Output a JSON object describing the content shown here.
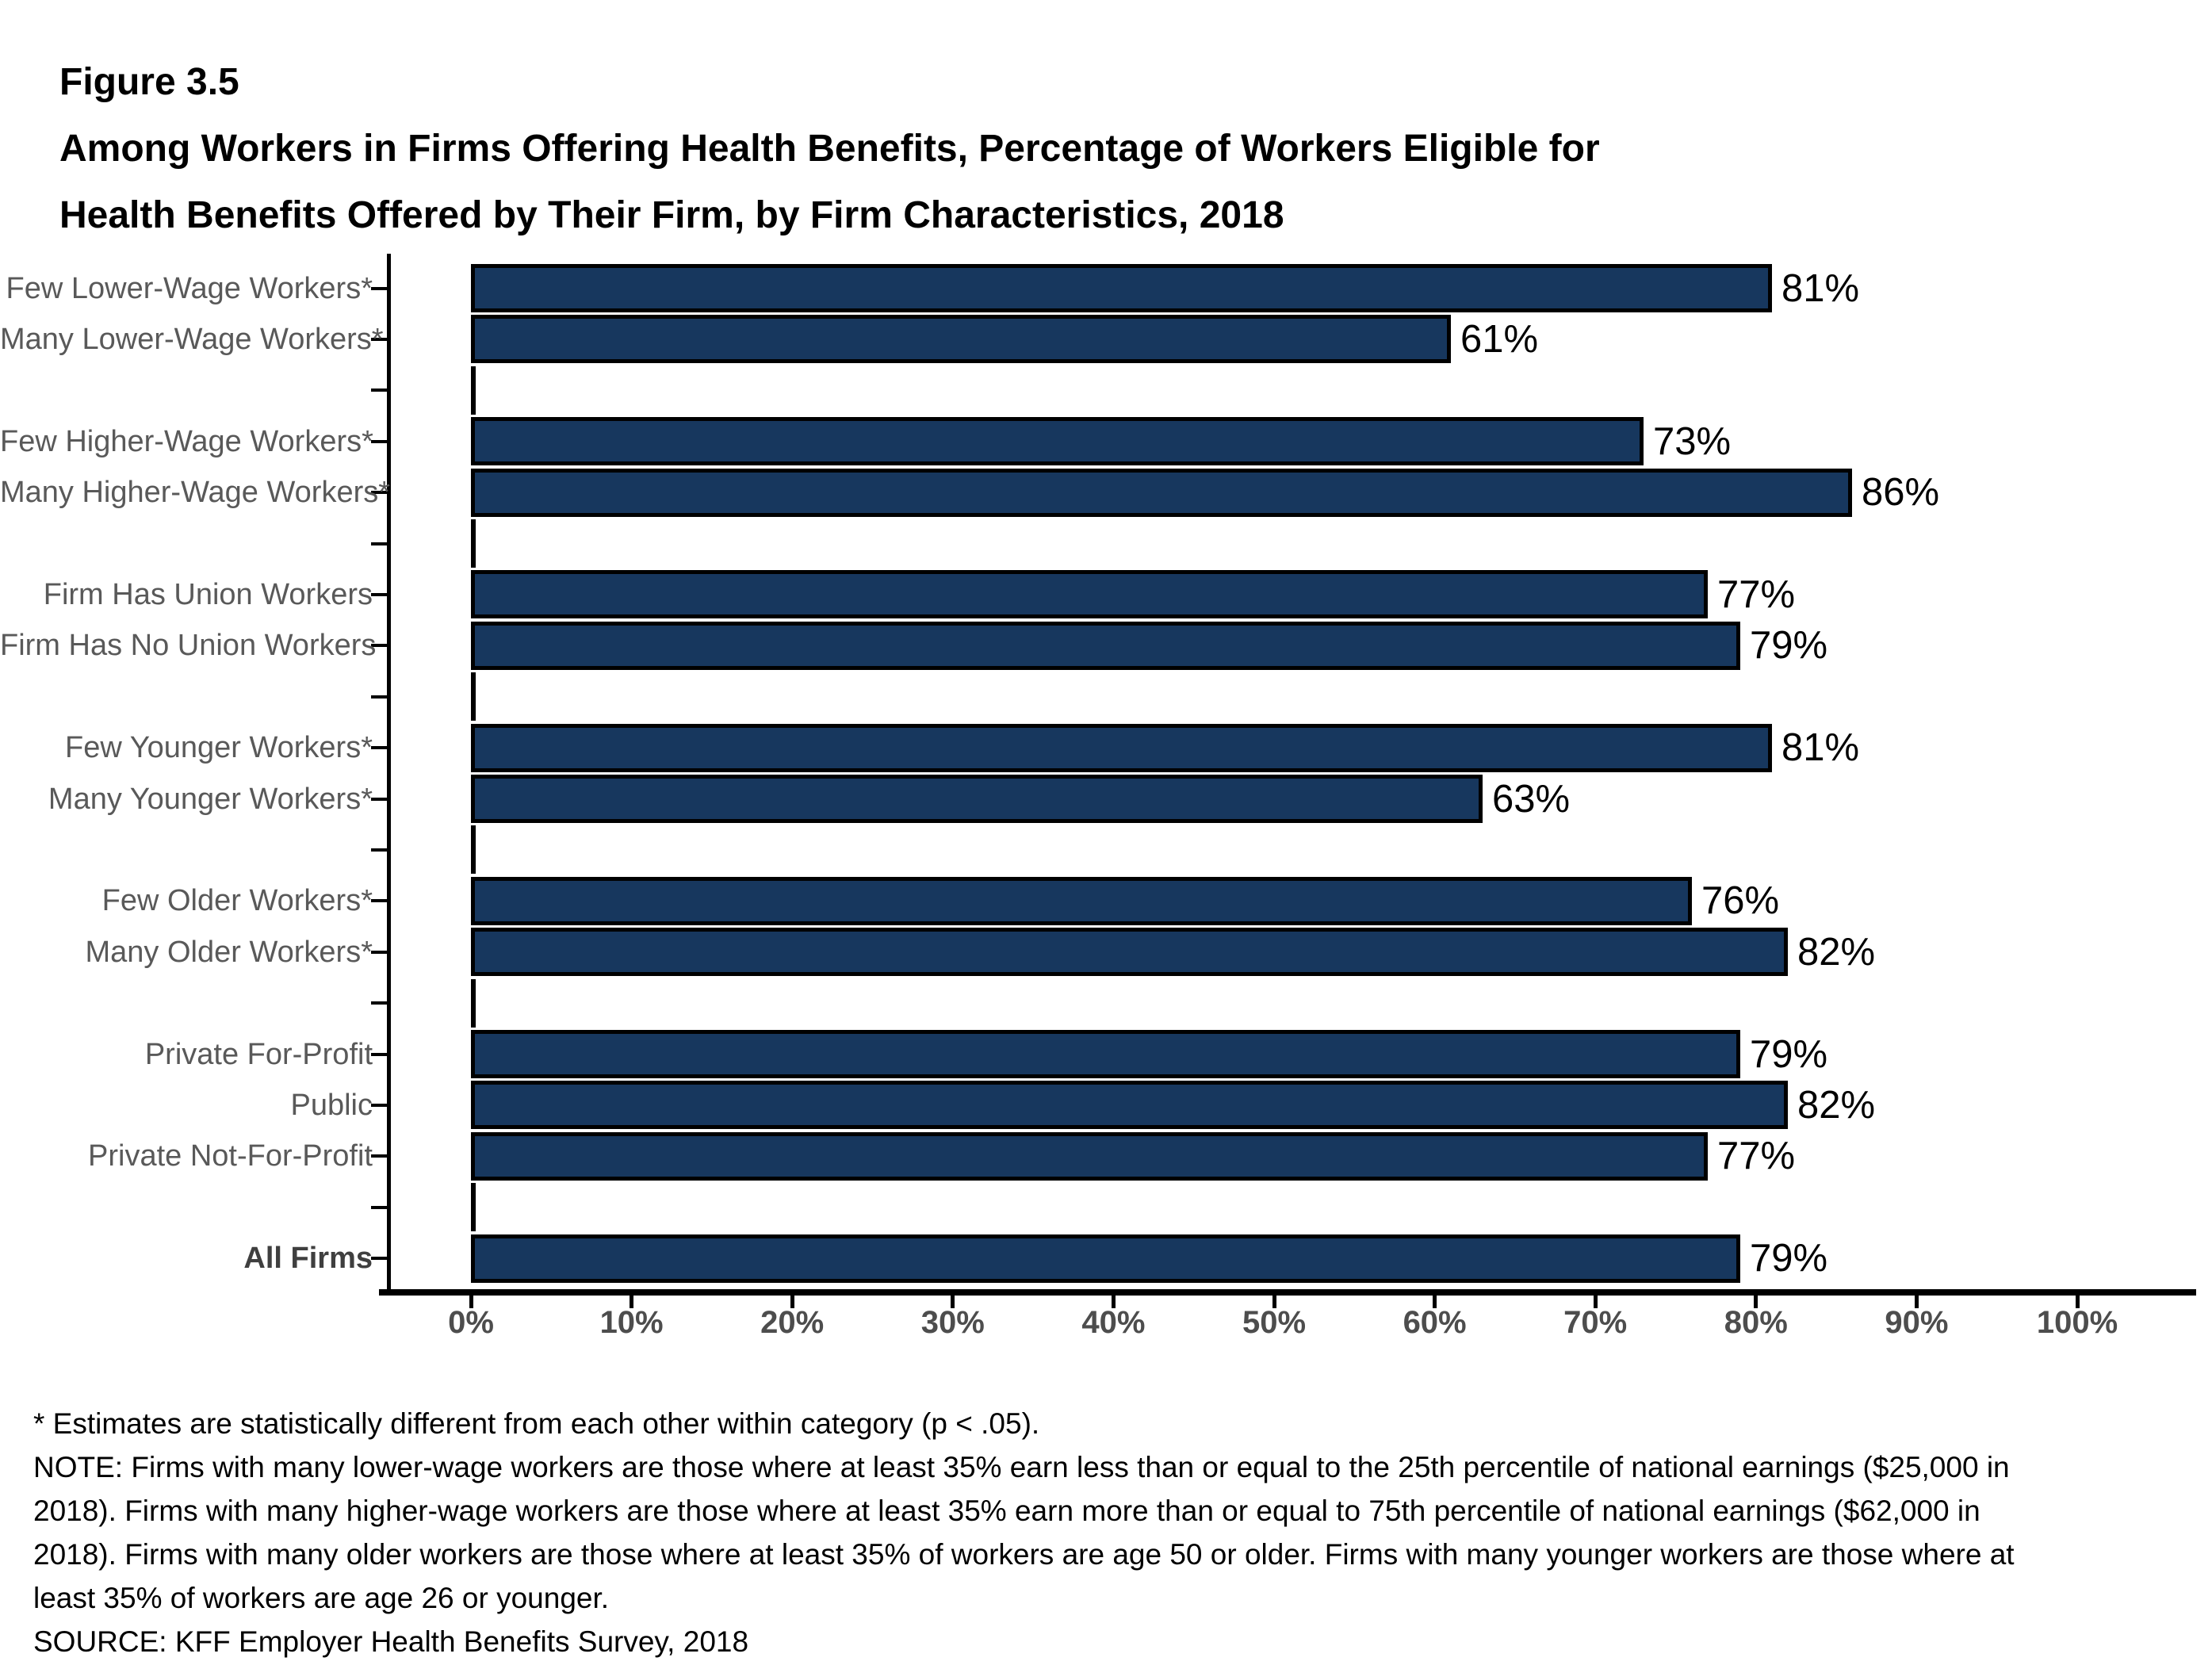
{
  "header": {
    "figure_label": "Figure 3.5",
    "title_line1": "Among Workers in Firms Offering Health Benefits, Percentage of Workers Eligible for",
    "title_line2": "Health Benefits Offered by Their Firm, by Firm Characteristics, 2018"
  },
  "chart_data": {
    "type": "bar",
    "orientation": "horizontal",
    "title": "Among Workers in Firms Offering Health Benefits, Percentage of Workers Eligible for Health Benefits Offered by Their Firm, by Firm Characteristics, 2018",
    "categories": [
      "Few Lower-Wage Workers*",
      "Many Lower-Wage Workers*",
      "Few Higher-Wage Workers*",
      "Many Higher-Wage Workers*",
      "Firm Has Union Workers",
      "Firm Has No Union Workers",
      "Few Younger Workers*",
      "Many Younger Workers*",
      "Few Older Workers*",
      "Many Older Workers*",
      "Private For-Profit",
      "Public",
      "Private Not-For-Profit",
      "All Firms"
    ],
    "values": [
      81,
      61,
      73,
      86,
      77,
      79,
      81,
      63,
      76,
      82,
      79,
      82,
      77,
      79
    ],
    "value_labels": [
      "81%",
      "61%",
      "73%",
      "86%",
      "77%",
      "79%",
      "81%",
      "63%",
      "76%",
      "82%",
      "79%",
      "82%",
      "77%",
      "79%"
    ],
    "group_sizes": [
      2,
      2,
      2,
      2,
      2,
      3,
      1
    ],
    "emphasized_category": "All Firms",
    "x_ticks": [
      "0%",
      "10%",
      "20%",
      "30%",
      "40%",
      "50%",
      "60%",
      "70%",
      "80%",
      "90%",
      "100%"
    ],
    "xlim": [
      0,
      100
    ],
    "grid": false,
    "legend_position": "none",
    "bar_color": "#17375E",
    "bar_border_color": "#000000",
    "category_label_color": "#595959",
    "axis_tick_label_color": "#4D4D4D",
    "value_label_color": "#000000"
  },
  "footnotes": {
    "lines": [
      "* Estimates are statistically different from each other within category (p < .05).",
      "NOTE: Firms with many lower-wage workers are those where at least 35% earn less than or equal to the 25th percentile of national earnings ($25,000 in",
      "2018). Firms with many higher-wage workers are those where at least 35% earn more than or equal to 75th percentile of national earnings ($62,000 in",
      "2018). Firms with many older workers are those where at least 35% of workers are age 50 or older. Firms with many younger workers are those where at",
      "least 35% of workers are age 26 or younger.",
      "SOURCE: KFF Employer Health Benefits Survey, 2018"
    ]
  }
}
